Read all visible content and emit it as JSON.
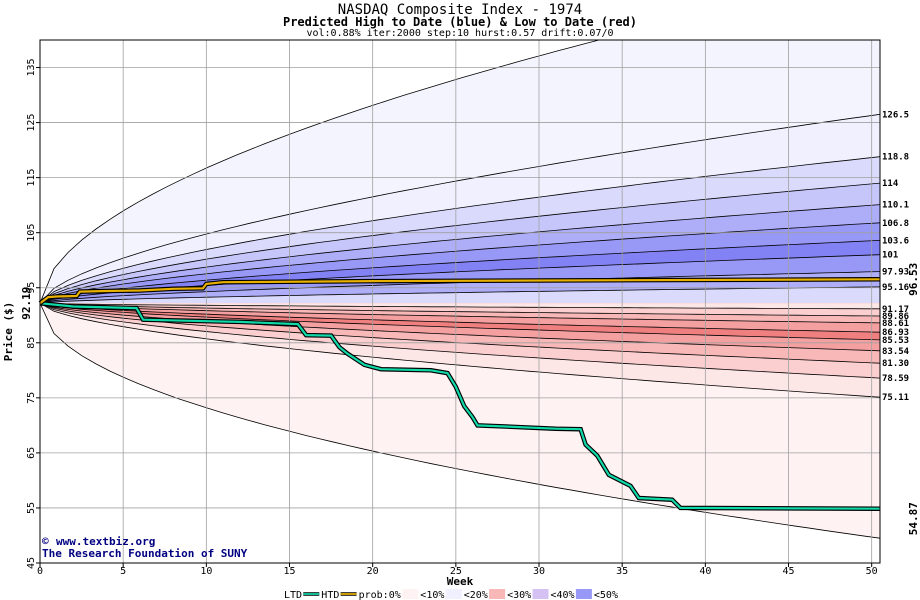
{
  "chart_data": {
    "type": "area",
    "title": "NASDAQ Composite Index - 1974",
    "subtitle": "Predicted High to Date (blue) &  Low to Date (red)",
    "params": "vol:0.88% iter:2000 step:10 hurst:0.57 drift:0.07/0",
    "xlabel": "Week",
    "ylabel": "Price ($)",
    "xlim": [
      0,
      50.5
    ],
    "ylim": [
      45,
      140
    ],
    "xticks": [
      0,
      5,
      10,
      15,
      20,
      25,
      30,
      35,
      40,
      45,
      50
    ],
    "yticks": [
      45,
      55,
      65,
      75,
      85,
      95,
      105,
      115,
      125,
      135
    ],
    "grid": true,
    "start_value": 92.19,
    "start_label": "92.19",
    "htd_final_label": "96.53",
    "ltd_final_label": "54.87",
    "colors": {
      "htd": "#e8b000",
      "ltd": "#10d8a8",
      "htd_label": "#a07800",
      "ltd_label": "#10a880",
      "credit": "#000080",
      "grid": "#a0a0a0"
    },
    "upper_quantiles": [
      {
        "label": "126.5",
        "value": 126.5,
        "fill": "#f0f0fe"
      },
      {
        "label": "118.8",
        "value": 118.8,
        "fill": "#dadafc"
      },
      {
        "label": "114",
        "value": 114,
        "fill": "#c6c6fa"
      },
      {
        "label": "110.1",
        "value": 110.1,
        "fill": "#aeaef8"
      },
      {
        "label": "106.8",
        "value": 106.8,
        "fill": "#9898f6"
      },
      {
        "label": "103.6",
        "value": 103.6,
        "fill": "#8282f4"
      },
      {
        "label": "101",
        "value": 101,
        "fill": "#9898f6"
      },
      {
        "label": "97.93",
        "value": 97.93,
        "fill": "#aeaef8"
      },
      {
        "label": "95.16",
        "value": 95.16,
        "fill": "#dadafc"
      }
    ],
    "outer_upper_bound": 152,
    "lower_quantiles": [
      {
        "label": "91.17",
        "value": 91.17,
        "fill": "#fde6e6"
      },
      {
        "label": "89.86",
        "value": 89.86,
        "fill": "#fbcfcf"
      },
      {
        "label": "88.61",
        "value": 88.61,
        "fill": "#f8b8b8"
      },
      {
        "label": "86.93",
        "value": 86.93,
        "fill": "#f5a0a0"
      },
      {
        "label": "85.53",
        "value": 85.53,
        "fill": "#f08080"
      },
      {
        "label": "83.54",
        "value": 83.54,
        "fill": "#f5a0a0"
      },
      {
        "label": "81.30",
        "value": 81.3,
        "fill": "#f8b8b8"
      },
      {
        "label": "78.59",
        "value": 78.59,
        "fill": "#fbcfcf"
      },
      {
        "label": "75.11",
        "value": 75.11,
        "fill": "#fde6e6"
      }
    ],
    "outer_lower_bound": 49.5,
    "lower_outer_fill": "#fff2f2",
    "htd_series": {
      "name": "HTD",
      "points": [
        [
          0,
          92.19
        ],
        [
          0.5,
          93.3
        ],
        [
          1,
          93.4
        ],
        [
          2.2,
          93.5
        ],
        [
          2.4,
          94.3
        ],
        [
          4,
          94.4
        ],
        [
          6,
          94.5
        ],
        [
          8,
          94.8
        ],
        [
          9.8,
          94.9
        ],
        [
          10,
          95.7
        ],
        [
          11,
          96.0
        ],
        [
          20,
          96.2
        ],
        [
          50.5,
          96.53
        ]
      ]
    },
    "ltd_series": {
      "name": "LTD",
      "points": [
        [
          0,
          92.19
        ],
        [
          2,
          91.6
        ],
        [
          5.8,
          91.3
        ],
        [
          6.2,
          89.2
        ],
        [
          9,
          89.0
        ],
        [
          12,
          88.8
        ],
        [
          15.5,
          88.4
        ],
        [
          16,
          86.4
        ],
        [
          17.5,
          86.3
        ],
        [
          18,
          84.2
        ],
        [
          18.5,
          83.0
        ],
        [
          19.5,
          81.0
        ],
        [
          20.5,
          80.2
        ],
        [
          23.5,
          80.0
        ],
        [
          24.5,
          79.5
        ],
        [
          25,
          77.0
        ],
        [
          25.5,
          73.5
        ],
        [
          26,
          71.5
        ],
        [
          26.3,
          70.0
        ],
        [
          28,
          69.8
        ],
        [
          31,
          69.4
        ],
        [
          32.5,
          69.3
        ],
        [
          32.8,
          66.5
        ],
        [
          33.5,
          64.5
        ],
        [
          34.2,
          61.0
        ],
        [
          35.5,
          59.0
        ],
        [
          36,
          56.8
        ],
        [
          38,
          56.5
        ],
        [
          38.5,
          55.0
        ],
        [
          50.5,
          54.87
        ]
      ]
    },
    "legend": [
      "LTD",
      "HTD",
      "prob:0%",
      "<10%",
      "<20%",
      "<30%",
      "<40%",
      "<50%"
    ],
    "legend_swatches": [
      "#fff2f2",
      "#f0f0fe",
      "#f8b8b8",
      "#d6c2f2",
      "#9898f6"
    ],
    "credit_line1": "www.textbiz.org",
    "credit_line2": "The Research Foundation of SUNY"
  }
}
